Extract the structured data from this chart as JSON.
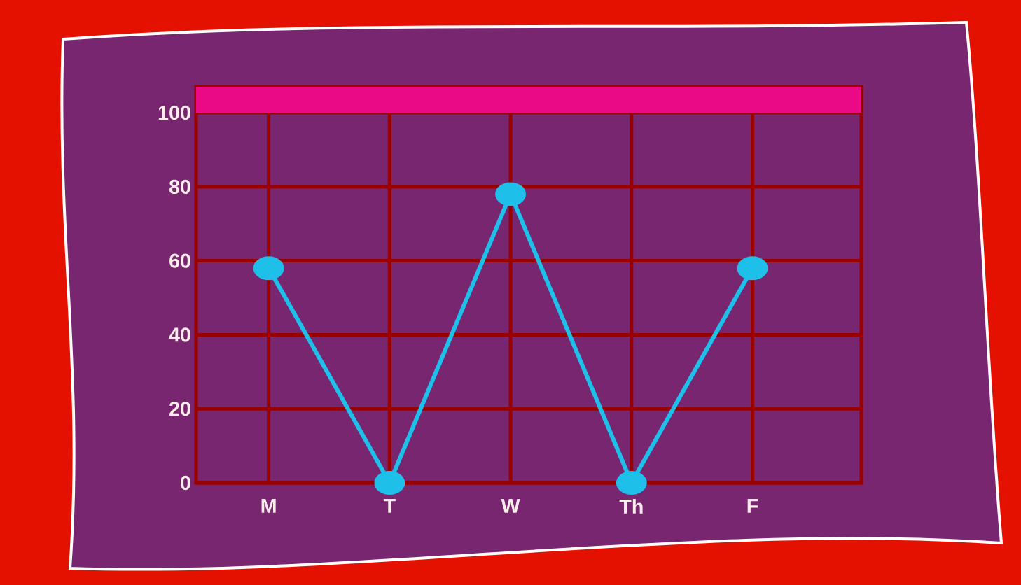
{
  "chart_data": {
    "type": "line",
    "categories": [
      "M",
      "T",
      "W",
      "Th",
      "F"
    ],
    "values": [
      58,
      0,
      78,
      0,
      58
    ],
    "color": "#1ec0ea",
    "ylim": [
      0,
      107
    ],
    "yticks": [
      0,
      20,
      40,
      60,
      80,
      100
    ],
    "grid": true,
    "marker": "circle",
    "line_style": "solid",
    "bands": [
      {
        "axis": "y",
        "from": 100,
        "to": 107,
        "color": "#ea0a86"
      }
    ]
  }
}
